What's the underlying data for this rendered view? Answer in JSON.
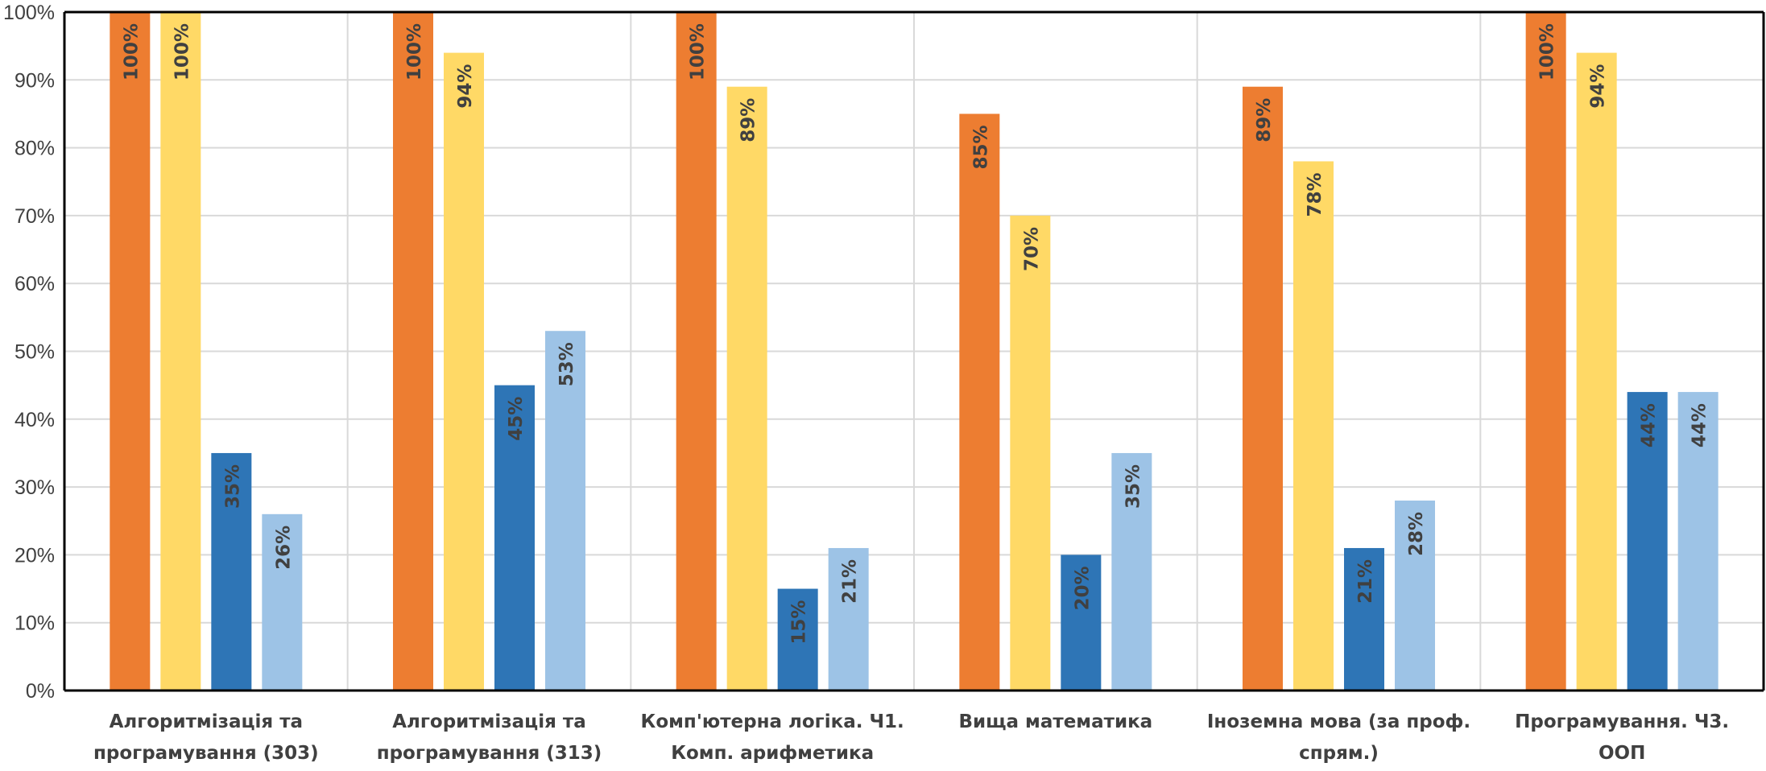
{
  "chart_data": {
    "type": "bar",
    "title": "",
    "xlabel": "",
    "ylabel": "",
    "ylim": [
      0,
      100
    ],
    "yticks": [
      "0%",
      "10%",
      "20%",
      "30%",
      "40%",
      "50%",
      "60%",
      "70%",
      "80%",
      "90%",
      "100%"
    ],
    "grid": true,
    "legend": "none",
    "categories": [
      [
        "Алгоритмізація та",
        "програмування (303)"
      ],
      [
        "Алгоритмізація та",
        "програмування (313)"
      ],
      [
        "Комп'ютерна логіка. Ч1.",
        "Комп. арифметика"
      ],
      [
        "Вища математика"
      ],
      [
        "Іноземна мова (за проф.",
        "спрям.)"
      ],
      [
        "Програмування. Ч3.",
        "ООП"
      ]
    ],
    "series": [
      {
        "color": "#ed7d31",
        "values": [
          100,
          100,
          100,
          85,
          89,
          100
        ],
        "labels": [
          "100%",
          "100%",
          "100%",
          "85%",
          "89%",
          "100%"
        ]
      },
      {
        "color": "#ffd966",
        "values": [
          100,
          94,
          89,
          70,
          78,
          94
        ],
        "labels": [
          "100%",
          "94%",
          "89%",
          "70%",
          "78%",
          "94%"
        ]
      },
      {
        "color": "#2e75b6",
        "values": [
          35,
          45,
          15,
          20,
          21,
          44
        ],
        "labels": [
          "35%",
          "45%",
          "15%",
          "20%",
          "21%",
          "44%"
        ]
      },
      {
        "color": "#9dc3e6",
        "values": [
          26,
          53,
          21,
          35,
          28,
          44
        ],
        "labels": [
          "26%",
          "53%",
          "21%",
          "35%",
          "28%",
          "44%"
        ]
      }
    ],
    "axis_color": "#000000",
    "grid_color": "#d9d9d9",
    "text_color": "#404040"
  }
}
